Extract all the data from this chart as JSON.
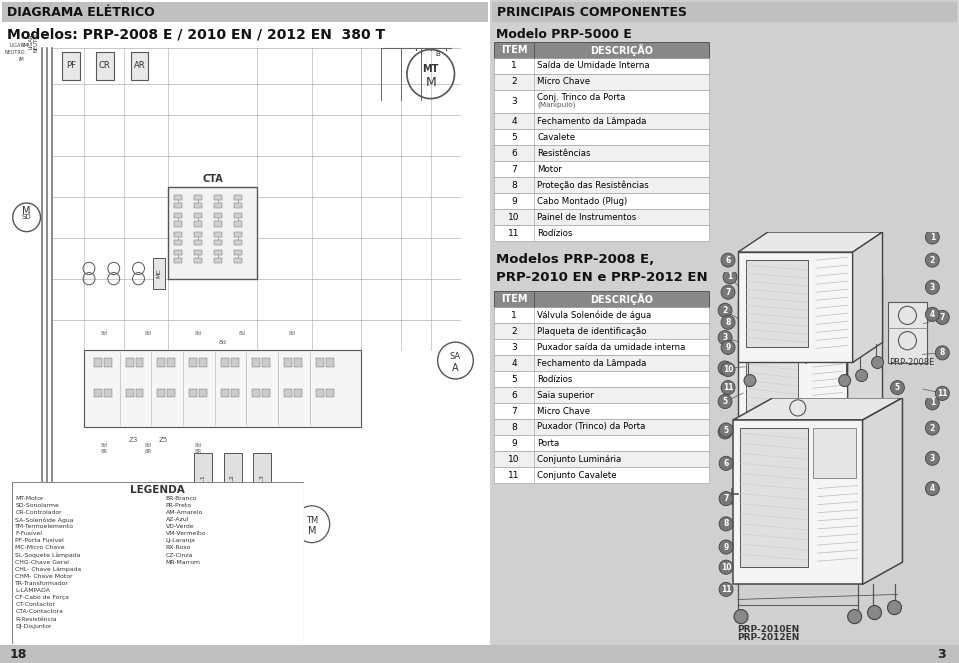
{
  "page_bg": "#d8d8d8",
  "left_bg": "#ffffff",
  "right_bg": "#d8d8d8",
  "header_left_text": "DIAGRAMA ELÉTRICO",
  "header_right_text": "PRINCIPAIS COMPONENTES",
  "subtitle_left": "Modelos: PRP-2008 E / 2010 EN / 2012 EN  380 T",
  "subtitle_right1": "Modelo PRP-5000 E",
  "subtitle_right2": "Modelos PRP-2008 E,\nPRP-2010 EN e PRP-2012 EN",
  "table1_headers": [
    "ITEM",
    "DESCRIÇÃO"
  ],
  "table1_rows": [
    [
      "1",
      "Saída de Umidade Interna"
    ],
    [
      "2",
      "Micro Chave"
    ],
    [
      "3",
      "Conj. Trinco da Porta\n(Manípulo)"
    ],
    [
      "4",
      "Fechamento da Lâmpada"
    ],
    [
      "5",
      "Cavalete"
    ],
    [
      "6",
      "Resistências"
    ],
    [
      "7",
      "Motor"
    ],
    [
      "8",
      "Proteção das Resistências"
    ],
    [
      "9",
      "Cabo Montado (Plug)"
    ],
    [
      "10",
      "Painel de Instrumentos"
    ],
    [
      "11",
      "Rodízios"
    ]
  ],
  "table2_headers": [
    "ITEM",
    "DESCRIÇÃO"
  ],
  "table2_rows": [
    [
      "1",
      "Válvula Solenóide de água"
    ],
    [
      "2",
      "Plaqueta de identificação"
    ],
    [
      "3",
      "Puxador saída da umidade interna"
    ],
    [
      "4",
      "Fechamento da Lâmpada"
    ],
    [
      "5",
      "Rodízios"
    ],
    [
      "6",
      "Saia superior"
    ],
    [
      "7",
      "Micro Chave"
    ],
    [
      "8",
      "Puxador (Trinco) da Porta"
    ],
    [
      "9",
      "Porta"
    ],
    [
      "10",
      "Conjunto Luminária"
    ],
    [
      "11",
      "Conjunto Cavalete"
    ]
  ],
  "legenda_title": "LEGENDA",
  "legenda_items_left": [
    "MT-Motor",
    "SD-Sonolarme",
    "CR-Controlador",
    "SA-Solenóide Água",
    "TM-Termoelemento",
    "F-Fusível",
    "PF-Porta Fusível",
    "MC-Micro Chave",
    "SL-Soquete Lâmpada",
    "CHG-Chave Geral",
    "CHL- Chave Lâmpada",
    "CHM- Chave Motor",
    "TR-Transformador",
    "L-LÂMPADA",
    "CF-Cabo de Força",
    "CT-Contactor",
    "CTA-Contactora",
    "R-Resistência",
    "DJ-Disjuntor"
  ],
  "legenda_items_right": [
    "BR-Branco",
    "PR-Preto",
    "AM-Amarelo",
    "AZ-Azul",
    "VD-Verde",
    "VM-Vermelho",
    "LJ-Laranja",
    "RX-Roxo",
    "CZ-Cinza",
    "MR-Marrom"
  ],
  "page_num_left": "18",
  "page_num_right": "3",
  "label_prp2008e": "PRP-2008E",
  "label_prp2010en": "PRP-2010EN",
  "label_prp2012en": "PRP-2012EN"
}
